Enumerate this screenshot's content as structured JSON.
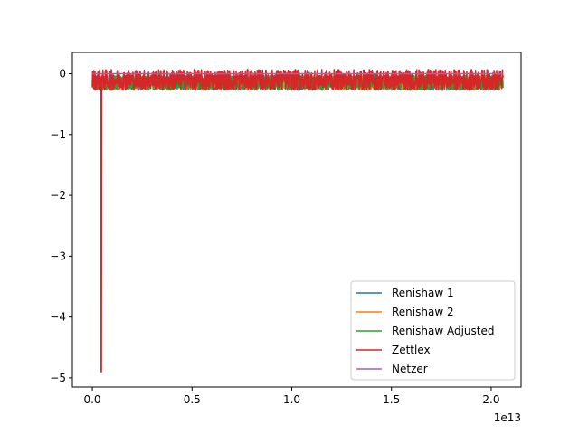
{
  "chart_data": {
    "type": "line",
    "title": "",
    "xlabel": "",
    "ylabel": "",
    "x_offset_label": "1e13",
    "xlim": [
      -0.1,
      2.15
    ],
    "ylim": [
      -5.15,
      0.35
    ],
    "xticks": [
      0.0,
      0.5,
      1.0,
      1.5,
      2.0
    ],
    "xtick_labels": [
      "0.0",
      "0.5",
      "1.0",
      "1.5",
      "2.0"
    ],
    "yticks": [
      0,
      -1,
      -2,
      -3,
      -4,
      -5
    ],
    "ytick_labels": [
      "0",
      "−1",
      "−2",
      "−3",
      "−4",
      "−5"
    ],
    "grid": false,
    "legend_position": "lower-right",
    "x_range": [
      0.0,
      2.06
    ],
    "spike": {
      "series": "Zettlex",
      "x": 0.045,
      "y": -4.9
    },
    "series": [
      {
        "name": "Renishaw 1",
        "color": "#1f77b4",
        "style": "noise",
        "center": -0.15,
        "amplitude": 0.12
      },
      {
        "name": "Renishaw 2",
        "color": "#ff7f0e",
        "style": "noise",
        "center": -0.15,
        "amplitude": 0.12
      },
      {
        "name": "Renishaw Adjusted",
        "color": "#2ca02c",
        "style": "noise",
        "center": -0.15,
        "amplitude": 0.12
      },
      {
        "name": "Zettlex",
        "color": "#d62728",
        "style": "noise",
        "center": -0.1,
        "amplitude": 0.17
      },
      {
        "name": "Netzer",
        "color": "#9467bd",
        "style": "flat",
        "center": 0.0,
        "amplitude": 0.0
      }
    ]
  }
}
